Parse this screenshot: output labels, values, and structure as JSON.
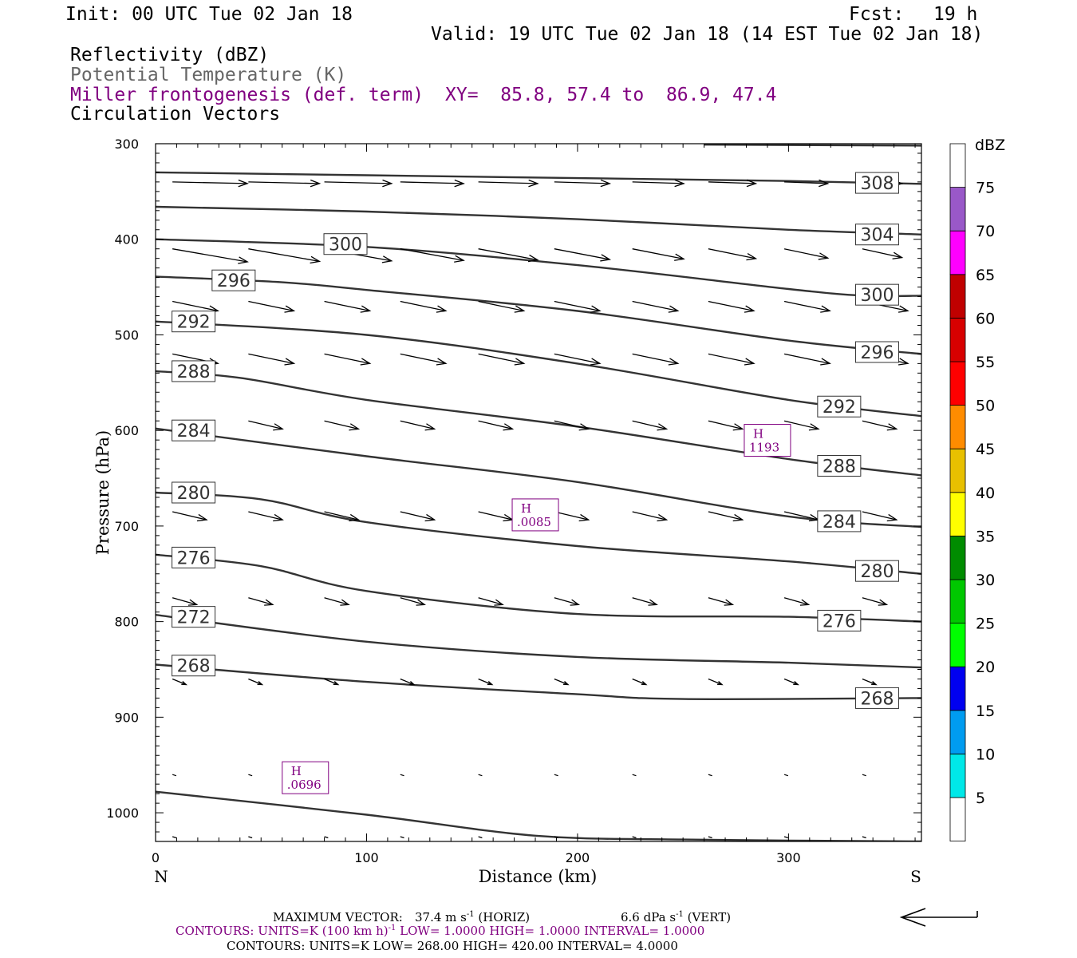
{
  "header": {
    "init": "Init: 00 UTC Tue 02 Jan 18",
    "fcst_label": "Fcst:",
    "fcst_value": "19 h",
    "valid": "Valid: 19 UTC Tue 02 Jan 18 (14 EST Tue 02 Jan 18)",
    "field1": "Reflectivity (dBZ)",
    "field2": "Potential Temperature (K)",
    "field3": "Miller frontogenesis (def. term)",
    "xy": "XY=  85.8, 57.4 to  86.9, 47.4",
    "field4": "Circulation Vectors"
  },
  "colors": {
    "theta": "#333333",
    "purple": "#800080",
    "field2_text": "#666666"
  },
  "chart_data": {
    "type": "cross-section",
    "xlabel": "Distance (km)",
    "ylabel": "Pressure (hPa)",
    "xlim": [
      0,
      363
    ],
    "ylim": [
      1030,
      300
    ],
    "x_ticks": [
      0,
      100,
      200,
      300
    ],
    "y_ticks": [
      300,
      400,
      500,
      600,
      700,
      800,
      900,
      1000
    ],
    "x_end_labels": {
      "left": "N",
      "right": "S"
    },
    "theta_contours": [
      {
        "label": "308",
        "label_at": [
          342,
          341
        ],
        "points": [
          [
            0,
            330
          ],
          [
            100,
            333
          ],
          [
            200,
            336
          ],
          [
            300,
            339
          ],
          [
            363,
            342
          ]
        ]
      },
      {
        "label": "304",
        "label_at": [
          342,
          395
        ],
        "points": [
          [
            0,
            366
          ],
          [
            100,
            371
          ],
          [
            200,
            379
          ],
          [
            300,
            390
          ],
          [
            363,
            395
          ]
        ]
      },
      {
        "label": "300",
        "label_at": [
          90,
          405
        ],
        "label2": "300",
        "label2_at": [
          342,
          458
        ],
        "points": [
          [
            0,
            400
          ],
          [
            100,
            408
          ],
          [
            200,
            427
          ],
          [
            300,
            452
          ],
          [
            336,
            459
          ],
          [
            363,
            459
          ]
        ]
      },
      {
        "label": "296",
        "label_at": [
          37,
          443
        ],
        "label2": "296",
        "label2_at": [
          342,
          518
        ],
        "points": [
          [
            0,
            439
          ],
          [
            60,
            445
          ],
          [
            100,
            453
          ],
          [
            200,
            475
          ],
          [
            300,
            506
          ],
          [
            363,
            520
          ]
        ]
      },
      {
        "label": "292",
        "label_at": [
          18,
          486
        ],
        "label2": "292",
        "label2_at": [
          324,
          575
        ],
        "points": [
          [
            0,
            486
          ],
          [
            100,
            500
          ],
          [
            200,
            530
          ],
          [
            300,
            568
          ],
          [
            363,
            585
          ]
        ]
      },
      {
        "label": "288",
        "label_at": [
          18,
          538
        ],
        "label2": "288",
        "label2_at": [
          324,
          637
        ],
        "points": [
          [
            0,
            538
          ],
          [
            40,
            545
          ],
          [
            100,
            568
          ],
          [
            200,
            596
          ],
          [
            300,
            630
          ],
          [
            363,
            647
          ]
        ]
      },
      {
        "label": "284",
        "label_at": [
          18,
          600
        ],
        "label2": "284",
        "label2_at": [
          324,
          695
        ],
        "points": [
          [
            0,
            598
          ],
          [
            100,
            627
          ],
          [
            200,
            654
          ],
          [
            300,
            690
          ],
          [
            363,
            701
          ]
        ]
      },
      {
        "label": "280",
        "label_at": [
          18,
          665
        ],
        "label2": "280",
        "label2_at": [
          342,
          747
        ],
        "points": [
          [
            0,
            665
          ],
          [
            50,
            672
          ],
          [
            100,
            696
          ],
          [
            200,
            721
          ],
          [
            300,
            737
          ],
          [
            363,
            750
          ]
        ]
      },
      {
        "label": "276",
        "label_at": [
          18,
          733
        ],
        "label2": "276",
        "label2_at": [
          324,
          799
        ],
        "points": [
          [
            0,
            730
          ],
          [
            50,
            742
          ],
          [
            100,
            768
          ],
          [
            200,
            792
          ],
          [
            300,
            795
          ],
          [
            363,
            800
          ]
        ]
      },
      {
        "label": "272",
        "label_at": [
          18,
          795
        ],
        "points": [
          [
            0,
            793
          ],
          [
            100,
            821
          ],
          [
            200,
            837
          ],
          [
            300,
            843
          ],
          [
            363,
            848
          ]
        ]
      },
      {
        "label": "268",
        "label_at": [
          18,
          846
        ],
        "label2": "268",
        "label2_at": [
          342,
          880
        ],
        "points": [
          [
            0,
            845
          ],
          [
            100,
            863
          ],
          [
            200,
            876
          ],
          [
            250,
            881
          ],
          [
            363,
            880
          ]
        ]
      },
      {
        "label": "",
        "points": [
          [
            0,
            978
          ],
          [
            100,
            1002
          ],
          [
            180,
            1024
          ],
          [
            250,
            1028
          ],
          [
            363,
            1030
          ]
        ]
      },
      {
        "label": "",
        "points": [
          [
            260,
            301
          ],
          [
            363,
            302
          ]
        ]
      }
    ],
    "highs": [
      {
        "label": "H",
        "value": ".0696",
        "at": [
          71,
          965
        ]
      },
      {
        "label": "H",
        "value": ".0085",
        "at": [
          180,
          690
        ]
      },
      {
        "label": "H",
        "value": "1193",
        "at": [
          290,
          612
        ]
      }
    ],
    "reference_vector_note": "MAXIMUM VECTOR",
    "colorbar": {
      "unit": "dBZ",
      "labels": [
        "5",
        "10",
        "15",
        "20",
        "25",
        "30",
        "35",
        "40",
        "45",
        "50",
        "55",
        "60",
        "65",
        "70",
        "75"
      ],
      "colors": [
        "#ffffff",
        "#00e8e8",
        "#009cf0",
        "#0000f0",
        "#00ff00",
        "#00c800",
        "#008c00",
        "#ffff00",
        "#e8c000",
        "#ff8c00",
        "#ff0000",
        "#d80000",
        "#c00000",
        "#ff00ff",
        "#9958c8",
        "#ffffff"
      ]
    }
  },
  "footer": {
    "max_vector_label": "MAXIMUM VECTOR:",
    "max_vector_horiz": "37.4 m s",
    "horiz_suffix": "(HORIZ)",
    "max_vector_vert": "6.6 dPa s",
    "vert_suffix": "(VERT)",
    "contours1_units": "CONTOURS:  UNITS=K (100 km h)",
    "contours1_rest": "LOW=   1.0000      HIGH=   1.0000      INTERVAL=    1.0000",
    "contours2": "CONTOURS:  UNITS=K  LOW=   268.00       HIGH=   420.00       INTERVAL=    4.0000"
  }
}
